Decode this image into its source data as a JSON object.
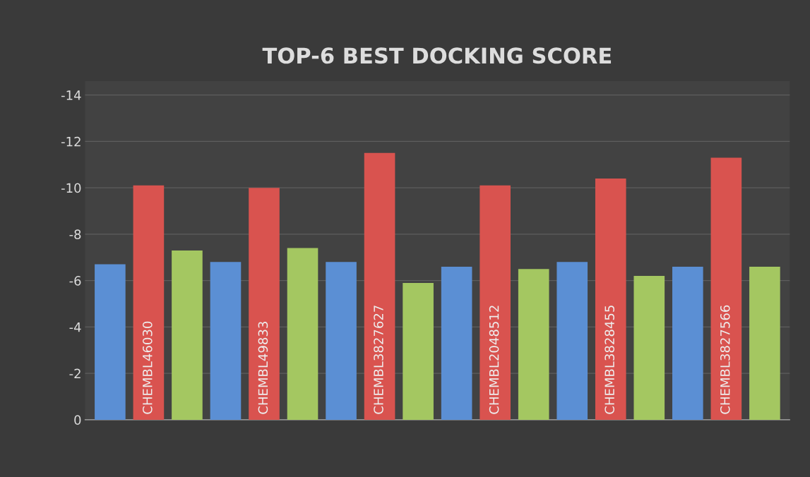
{
  "chart_data": {
    "type": "bar",
    "title": "TOP-6 BEST DOCKING SCORE",
    "categories": [
      "CHEMBL46030",
      "CHEMBL49833",
      "CHEMBL3827627",
      "CHEMBL2048512",
      "CHEMBL3828455",
      "CHEMBL3827566"
    ],
    "series": [
      {
        "color": "#5b8fd4",
        "values": [
          -6.7,
          -6.8,
          -6.8,
          -6.6,
          -6.8,
          -6.6
        ]
      },
      {
        "color": "#d9534f",
        "values": [
          -10.1,
          -10.0,
          -11.5,
          -10.1,
          -10.4,
          -11.3
        ]
      },
      {
        "color": "#a4c761",
        "values": [
          -7.3,
          -7.4,
          -5.9,
          -6.5,
          -6.2,
          -6.6
        ]
      }
    ],
    "ylim": [
      0,
      -14.6
    ],
    "yticks": [
      0,
      -2,
      -4,
      -6,
      -8,
      -10,
      -12,
      -14
    ],
    "grid": "y"
  }
}
